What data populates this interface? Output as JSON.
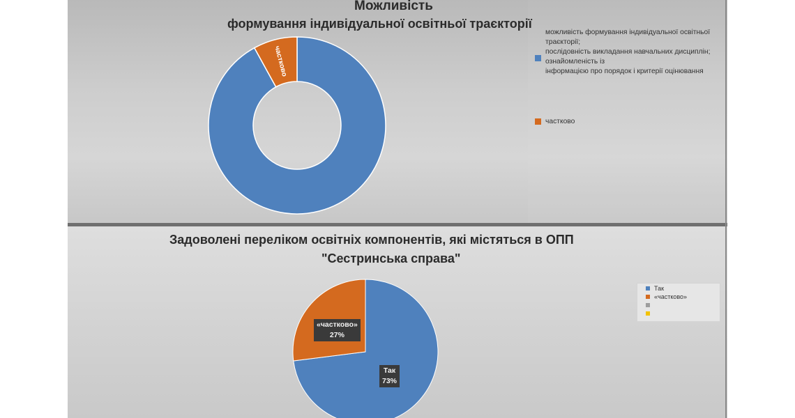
{
  "chart_data": [
    {
      "type": "pie",
      "style": "donut",
      "title": "Можливість",
      "subtitle": "формування індивідуальної освітньої траєкторії",
      "slices": [
        {
          "label": "можливість формування індивідуальної освітньої траєкторії; послідовність викладання навчальних дисциплін; ознайомленість із інформацією про порядок і критерії оцінювання",
          "value": 92,
          "color": "#4f81bd"
        },
        {
          "label": "частково",
          "value": 8,
          "color": "#d46a1f"
        }
      ],
      "data_labels": [
        "частково"
      ],
      "legend_lines": [
        "можливість формування індивідуальної освітньої",
        "траєкторії;",
        "послідовність викладання навчальних дисциплін;",
        "ознайомленість із",
        "інформацією про порядок і критерії оцінювання"
      ],
      "legend_position": "right"
    },
    {
      "type": "pie",
      "title": "Задоволені переліком освітніх компонентів, які містяться в ОПП",
      "subtitle": "\"Сестринська справа\"",
      "slices": [
        {
          "label": "Так",
          "value": 73,
          "color": "#4f81bd"
        },
        {
          "label": "«частково»",
          "value": 27,
          "color": "#d46a1f"
        },
        {
          "label": "",
          "value": 0,
          "color": "#9e9e9e"
        },
        {
          "label": "",
          "value": 0,
          "color": "#f2c200"
        }
      ],
      "data_labels": [
        {
          "name": "«частково»",
          "value": "27%"
        },
        {
          "name": "Так",
          "value": "73%"
        }
      ],
      "legend_position": "right"
    }
  ]
}
